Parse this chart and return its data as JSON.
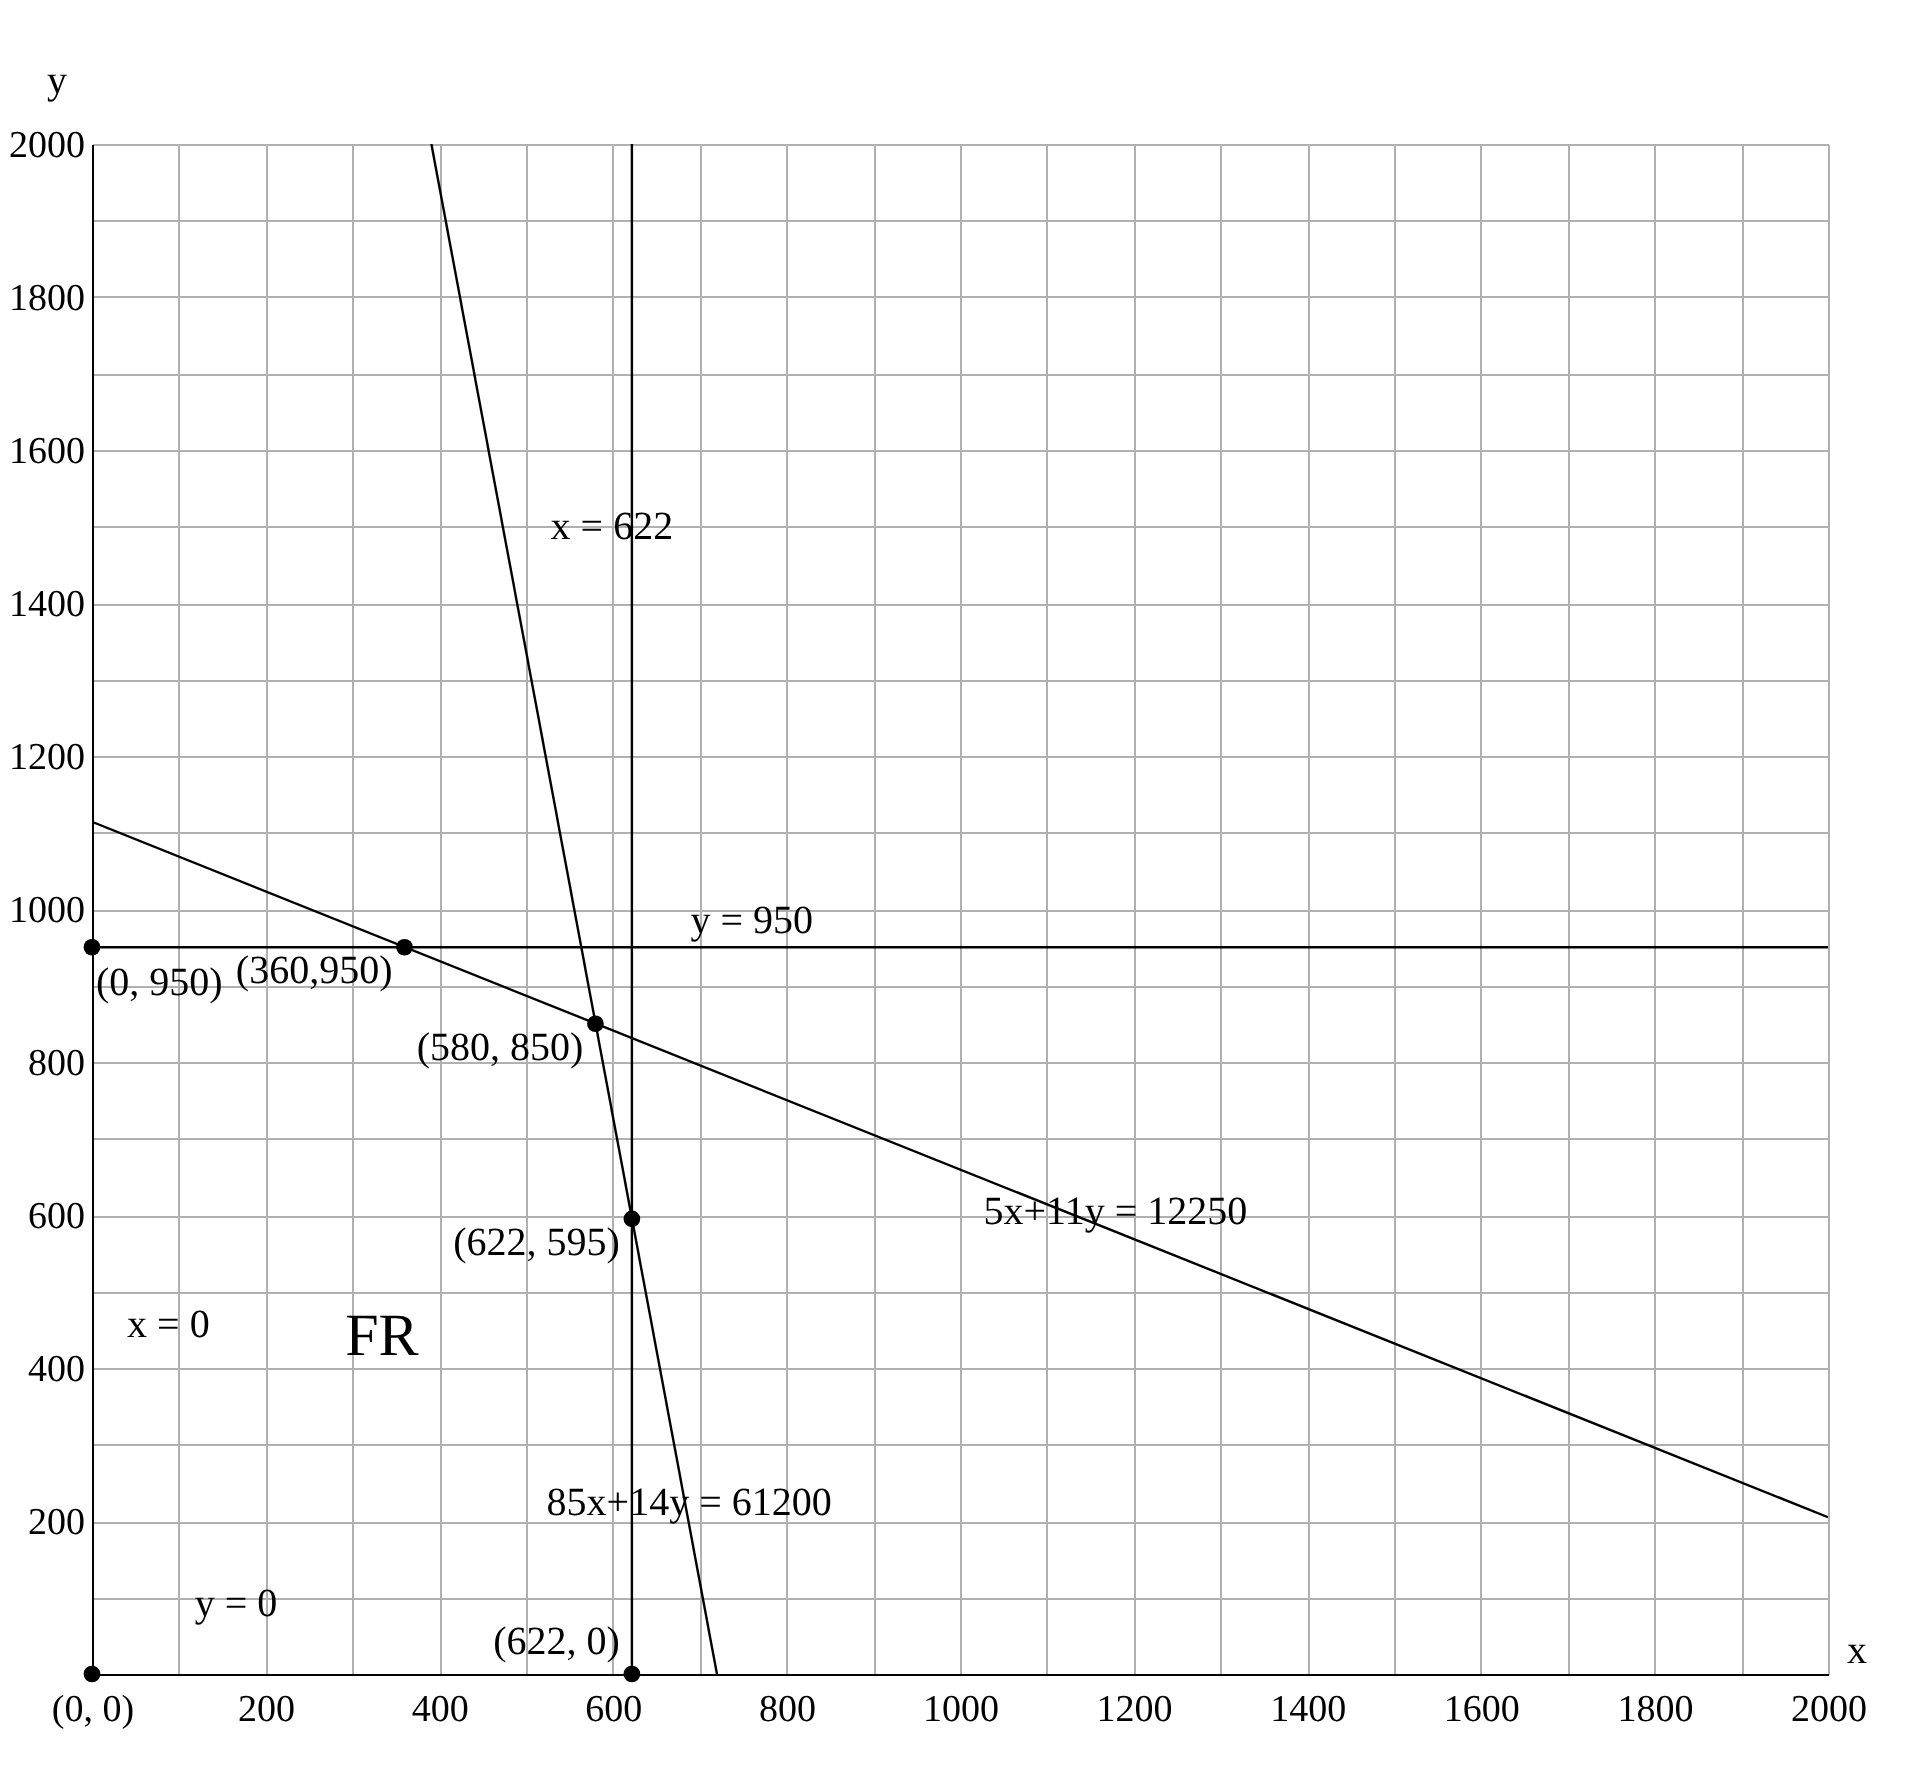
{
  "chart_data": {
    "type": "line",
    "xlabel": "x",
    "ylabel": "y",
    "xlim": [
      0,
      2000
    ],
    "ylim": [
      0,
      2000
    ],
    "xticks": [
      {
        "value": 0,
        "label": "(0, 0)"
      },
      {
        "value": 100,
        "label": null
      },
      200,
      {
        "value": 300,
        "label": null
      },
      400,
      {
        "value": 500,
        "label": null
      },
      600,
      {
        "value": 700,
        "label": null
      },
      800,
      {
        "value": 900,
        "label": null
      },
      1000,
      {
        "value": 1100,
        "label": null
      },
      1200,
      {
        "value": 1300,
        "label": null
      },
      1400,
      {
        "value": 1500,
        "label": null
      },
      1600,
      {
        "value": 1700,
        "label": null
      },
      1800,
      {
        "value": 1900,
        "label": null
      },
      2000
    ],
    "yticks": [
      {
        "value": 100,
        "label": null
      },
      200,
      {
        "value": 300,
        "label": null
      },
      400,
      {
        "value": 500,
        "label": null
      },
      600,
      {
        "value": 700,
        "label": null
      },
      800,
      {
        "value": 900,
        "label": null
      },
      1000,
      {
        "value": 1100,
        "label": null
      },
      1200,
      {
        "value": 1300,
        "label": null
      },
      1400,
      {
        "value": 1500,
        "label": null
      },
      1600,
      {
        "value": 1700,
        "label": null
      },
      1800,
      {
        "value": 1900,
        "label": null
      },
      2000
    ],
    "grid": true,
    "line_style": "solid",
    "series": [
      {
        "color": "#000000",
        "x": [
          0,
          2000
        ],
        "values": [
          1114,
          205
        ]
      },
      {
        "color": "#000000",
        "x": [
          391,
          720
        ],
        "values": [
          2000,
          0
        ]
      },
      {
        "type": "scatter",
        "color": "#000000",
        "marker": "circle",
        "x": [
          0,
          0,
          360,
          580,
          622,
          622
        ],
        "values": [
          0,
          950,
          950,
          850,
          595,
          0
        ]
      }
    ],
    "ref_lines": [
      {
        "axis": "x",
        "value": 622,
        "label": "x = 622",
        "color": "#000000"
      },
      {
        "axis": "y",
        "value": 950,
        "label": "y = 950",
        "color": "#000000"
      }
    ],
    "annotations": [
      {
        "text": "(0, 950)",
        "x": 0,
        "y": 950
      },
      {
        "text": "(360,950)",
        "x": 360,
        "y": 950
      },
      {
        "text": "(580, 850)",
        "x": 580,
        "y": 850
      },
      {
        "text": "(622, 595)",
        "x": 622,
        "y": 595
      },
      {
        "text": "(622, 0)",
        "x": 622,
        "y": 0
      },
      "x = 0",
      "y = 0",
      "FR",
      {
        "text": "5x+11y = 12250",
        "x": 1179,
        "y": 578
      },
      {
        "text": "85x+14y = 61200",
        "x": 688,
        "y": 197
      }
    ]
  }
}
